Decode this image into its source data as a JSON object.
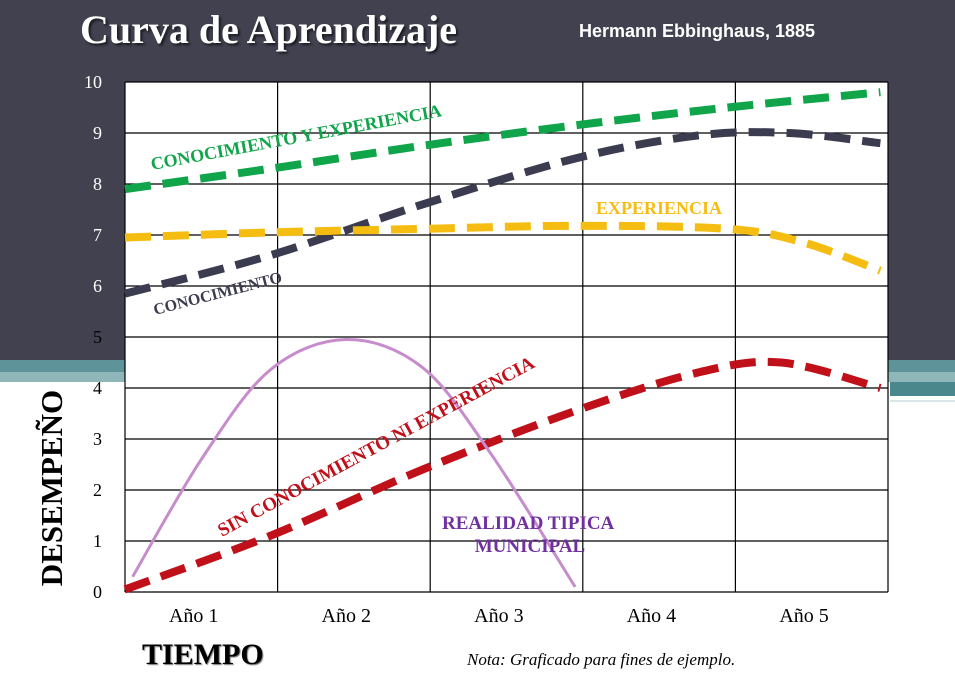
{
  "header": {
    "title": "Curva de Aprendizaje",
    "subtitle": "Hermann Ebbinghaus, 1885"
  },
  "footer": {
    "note": "Nota: Graficado para fines de ejemplo."
  },
  "colors": {
    "background_band": "#41414f",
    "green": "#10a54a",
    "navy": "#3c3c50",
    "yellow": "#f5bd12",
    "red": "#c0101a",
    "purple": "#c68ccb",
    "purple_label": "#7030a0"
  },
  "chart_data": {
    "type": "line",
    "title": "Curva de Aprendizaje",
    "xlabel": "TIEMPO",
    "ylabel": "DESEMPEÑO",
    "categories": [
      "Año 1",
      "Año 2",
      "Año 3",
      "Año 4",
      "Año 5"
    ],
    "x_range": [
      0.55,
      5.55
    ],
    "ylim": [
      0,
      10
    ],
    "yticks": [
      "0",
      "1",
      "2",
      "3",
      "4",
      "5",
      "6",
      "7",
      "8",
      "9",
      "10"
    ],
    "grid": true,
    "series": [
      {
        "name": "CONOCIMIENTO Y EXPERIENCIA",
        "label": "CONOCIMIENTO Y EXPERIENCIA",
        "color": "#10a54a",
        "style": "dashed",
        "x": [
          0.55,
          1.5,
          2.5,
          3.5,
          4.5,
          5.5
        ],
        "values": [
          7.9,
          8.3,
          8.75,
          9.15,
          9.5,
          9.8
        ]
      },
      {
        "name": "CONOCIMIENTO",
        "label": "CONOCIMIENTO",
        "color": "#3c3c50",
        "style": "dashed",
        "x": [
          0.55,
          1.5,
          2.5,
          3.5,
          4.3,
          4.9,
          5.5
        ],
        "values": [
          5.85,
          6.6,
          7.6,
          8.5,
          8.95,
          9.0,
          8.8
        ]
      },
      {
        "name": "EXPERIENCIA",
        "label": "EXPERIENCIA",
        "color": "#f5bd12",
        "style": "dashed",
        "x": [
          0.55,
          1.5,
          2.5,
          3.5,
          4.5,
          5.0,
          5.5
        ],
        "values": [
          6.95,
          7.05,
          7.12,
          7.18,
          7.12,
          6.85,
          6.3
        ]
      },
      {
        "name": "SIN CONOCIMIENTO NI EXPERIENCIA",
        "label": "SIN CONOCIMIENTO NI EXPERIENCIA",
        "color": "#c0101a",
        "style": "dashed",
        "x": [
          0.55,
          1.5,
          2.5,
          3.5,
          4.3,
          4.85,
          5.5
        ],
        "values": [
          0.05,
          1.1,
          2.4,
          3.55,
          4.3,
          4.5,
          4.0
        ]
      },
      {
        "name": "REALIDAD TIPICA MUNICIPAL",
        "label": "REALIDAD TIPICA MUNICIPAL",
        "color": "#c68ccb",
        "style": "solid",
        "x": [
          0.6,
          1.05,
          1.5,
          2.0,
          2.5,
          2.95,
          3.5
        ],
        "values": [
          0.3,
          2.6,
          4.35,
          4.95,
          4.4,
          2.7,
          0.1
        ]
      }
    ]
  }
}
